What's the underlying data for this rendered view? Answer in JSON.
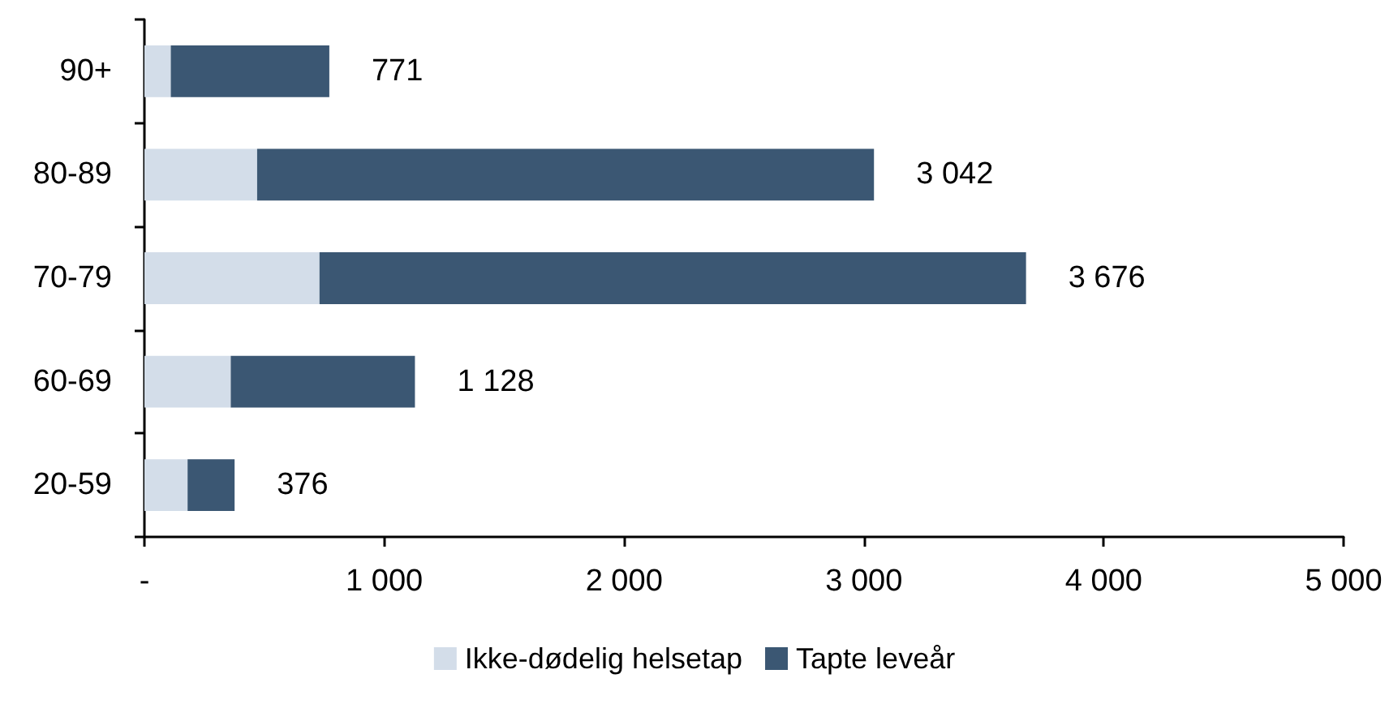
{
  "chart_data": {
    "type": "bar",
    "orientation": "horizontal",
    "stacked": true,
    "categories": [
      "90+",
      "80-89",
      "70-79",
      "60-69",
      "20-59"
    ],
    "series": [
      {
        "name": "Ikke-dødelig helsetap",
        "color": "#d3dde9",
        "values": [
          110,
          470,
          730,
          360,
          180
        ]
      },
      {
        "name": "Tapte leveår",
        "color": "#3b5773",
        "values": [
          661,
          2572,
          2946,
          768,
          196
        ]
      }
    ],
    "totals": [
      "771",
      "3 042",
      "3 676",
      "1 128",
      "376"
    ],
    "xlim": [
      0,
      5000
    ],
    "xticks": [
      {
        "value": 0,
        "label": "-"
      },
      {
        "value": 1000,
        "label": "1 000"
      },
      {
        "value": 2000,
        "label": "2 000"
      },
      {
        "value": 3000,
        "label": "3 000"
      },
      {
        "value": 4000,
        "label": "4 000"
      },
      {
        "value": 5000,
        "label": "5 000"
      }
    ],
    "grid": false,
    "legend": "bottom"
  }
}
